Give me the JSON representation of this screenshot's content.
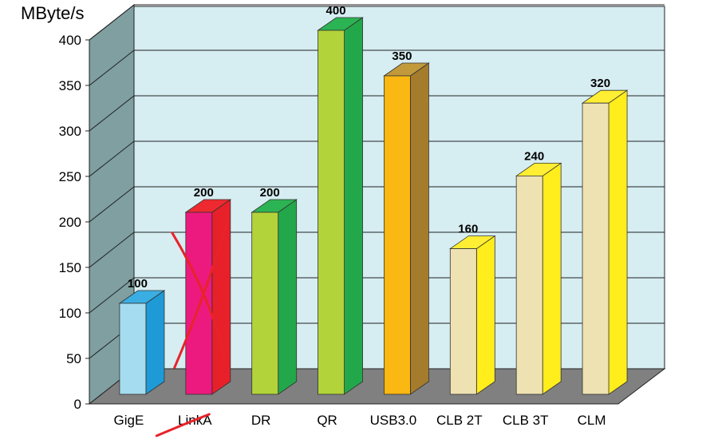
{
  "chart_data": {
    "type": "bar",
    "ylabel": "MByte/s",
    "ylim": [
      0,
      400
    ],
    "yticks": [
      0,
      50,
      100,
      150,
      200,
      250,
      300,
      350,
      400
    ],
    "categories": [
      "GigE",
      "LinkA",
      "DR",
      "QR",
      "USB3.0",
      "CLB 2T",
      "CLB 3T",
      "CLM"
    ],
    "values": [
      100,
      200,
      200,
      400,
      350,
      160,
      240,
      320
    ],
    "value_labels": [
      "100",
      "200",
      "200",
      "400",
      "350",
      "160",
      "240",
      "320"
    ],
    "crossed_out": [
      "LinkA"
    ],
    "grid": true,
    "style": "3d",
    "colors": {
      "background_wall": "#d6edf2",
      "side_wall": "#7f9fa0",
      "floor": "#808080",
      "cross": "#e8232a",
      "bars": [
        {
          "front": "#a5dcef",
          "side": "#1e9ad6",
          "top": "#3aaee2"
        },
        {
          "front": "#ec1a7f",
          "side": "#e8202a",
          "top": "#ee2a30"
        },
        {
          "front": "#b3d33a",
          "side": "#22a84a",
          "top": "#2cb454"
        },
        {
          "front": "#b3d33a",
          "side": "#22a84a",
          "top": "#2cb454"
        },
        {
          "front": "#fbb712",
          "side": "#a47c2c",
          "top": "#c29a3c"
        },
        {
          "front": "#efe2b2",
          "side": "#ffed1c",
          "top": "#ffee33"
        },
        {
          "front": "#efe2b2",
          "side": "#ffed1c",
          "top": "#ffee33"
        },
        {
          "front": "#efe2b2",
          "side": "#ffed1c",
          "top": "#ffee33"
        }
      ]
    }
  }
}
